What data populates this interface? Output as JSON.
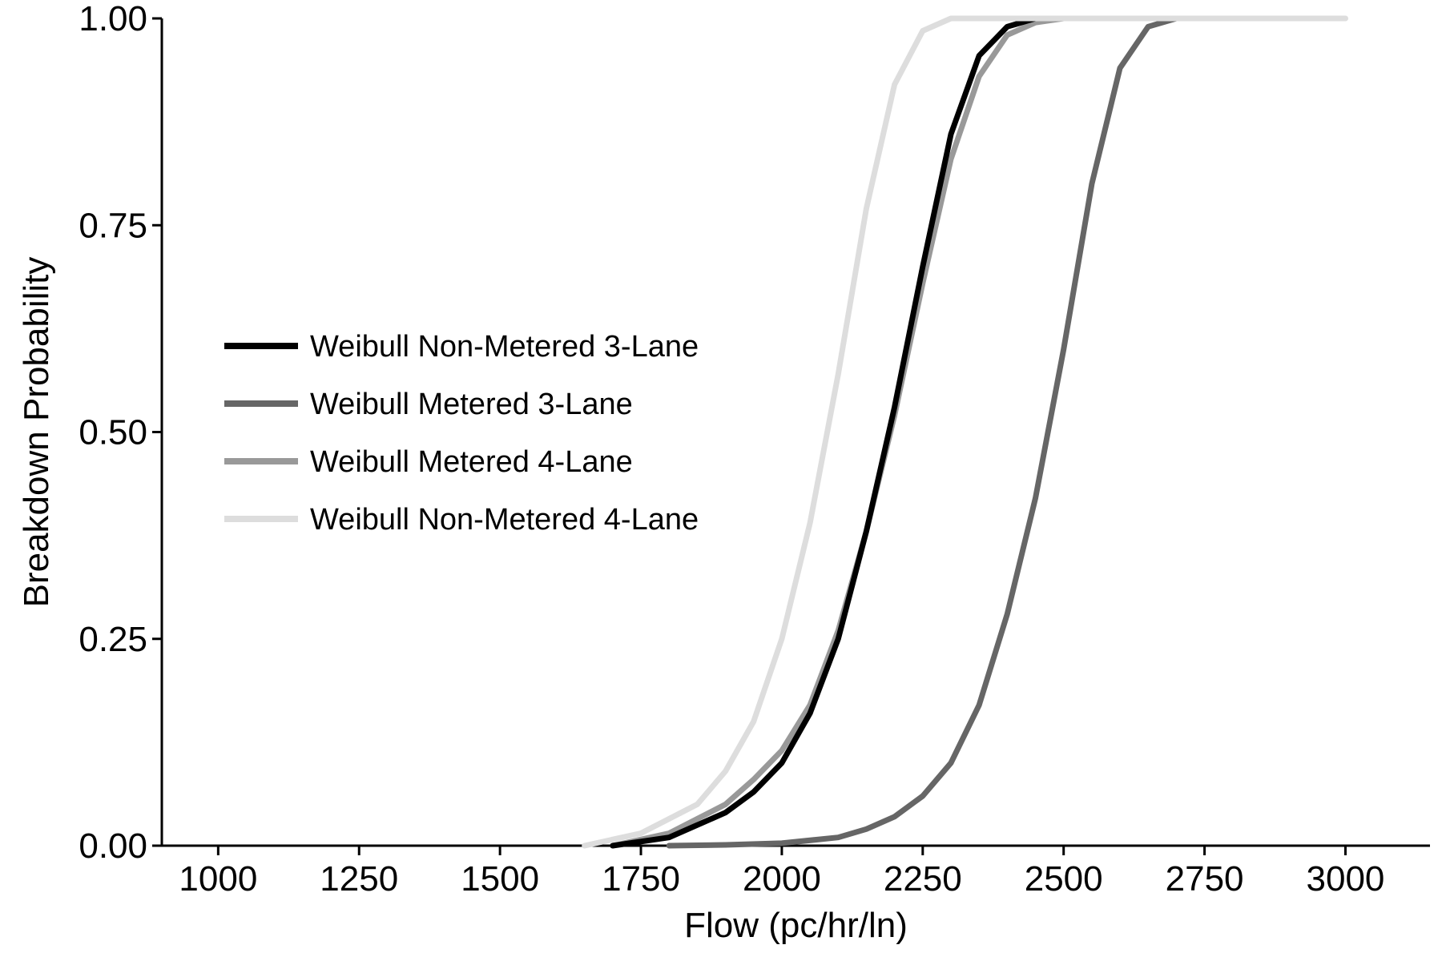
{
  "chart_data": {
    "type": "line",
    "xlabel": "Flow (pc/hr/ln)",
    "ylabel": "Breakdown Probability",
    "xlim": [
      900,
      3150
    ],
    "ylim": [
      0,
      1
    ],
    "x_ticks": [
      1000,
      1250,
      1500,
      1750,
      2000,
      2250,
      2500,
      2750,
      3000
    ],
    "x_tick_labels": [
      "1000",
      "1250",
      "1500",
      "1750",
      "2000",
      "2250",
      "2500",
      "2750",
      "3000"
    ],
    "y_ticks": [
      0,
      0.25,
      0.5,
      0.75,
      1.0
    ],
    "y_tick_labels": [
      "0.00",
      "0.25",
      "0.50",
      "0.75",
      "1.00"
    ],
    "grid": false,
    "legend_position": "left-middle",
    "series": [
      {
        "name": "Weibull Non-Metered 3-Lane",
        "color": "#000000",
        "x": [
          1700,
          1800,
          1900,
          1950,
          2000,
          2050,
          2100,
          2150,
          2200,
          2250,
          2300,
          2350,
          2400,
          2450,
          2500
        ],
        "y": [
          0.0,
          0.01,
          0.04,
          0.065,
          0.1,
          0.16,
          0.25,
          0.38,
          0.53,
          0.7,
          0.86,
          0.955,
          0.99,
          1.0,
          1.0
        ]
      },
      {
        "name": "Weibull Metered 3-Lane",
        "color": "#666666",
        "x": [
          1800,
          1900,
          2000,
          2100,
          2150,
          2200,
          2250,
          2300,
          2350,
          2400,
          2450,
          2500,
          2550,
          2600,
          2650,
          2700,
          2750
        ],
        "y": [
          0.0,
          0.001,
          0.003,
          0.01,
          0.02,
          0.035,
          0.06,
          0.1,
          0.17,
          0.28,
          0.42,
          0.6,
          0.8,
          0.94,
          0.99,
          1.0,
          1.0
        ]
      },
      {
        "name": "Weibull Metered 4-Lane",
        "color": "#999999",
        "x": [
          1700,
          1800,
          1900,
          1950,
          2000,
          2050,
          2100,
          2150,
          2200,
          2250,
          2300,
          2350,
          2400,
          2450,
          2500,
          2550
        ],
        "y": [
          0.0,
          0.015,
          0.05,
          0.08,
          0.115,
          0.17,
          0.26,
          0.38,
          0.52,
          0.68,
          0.83,
          0.93,
          0.98,
          0.995,
          1.0,
          1.0
        ]
      },
      {
        "name": "Weibull Non-Metered 4-Lane",
        "color": "#dddddd",
        "x": [
          1650,
          1750,
          1850,
          1900,
          1950,
          2000,
          2050,
          2100,
          2150,
          2200,
          2250,
          2300,
          2350,
          2400,
          3000
        ],
        "y": [
          0.0,
          0.015,
          0.05,
          0.09,
          0.15,
          0.25,
          0.39,
          0.57,
          0.77,
          0.92,
          0.985,
          1.0,
          1.0,
          1.0,
          1.0
        ]
      }
    ]
  }
}
